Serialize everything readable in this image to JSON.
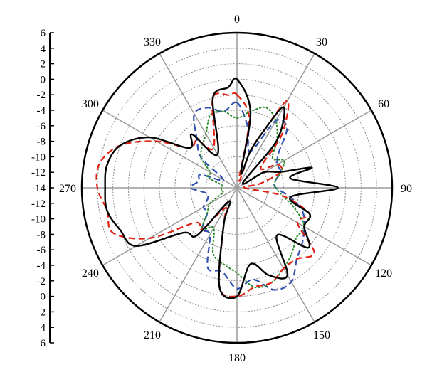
{
  "chart_data": {
    "type": "polar-line",
    "title": "",
    "angle_ticks": [
      "0",
      "30",
      "60",
      "90",
      "120",
      "150",
      "180",
      "210",
      "240",
      "270",
      "300",
      "330"
    ],
    "radial_scale_labels": [
      "6",
      "4",
      "2",
      "0",
      "-2",
      "-4",
      "-6",
      "-8",
      "-10",
      "-12",
      "-14",
      "-12",
      "-10",
      "-8",
      "-6",
      "-4",
      "-2",
      "0",
      "2",
      "4",
      "6"
    ],
    "r_range": [
      -14,
      6
    ],
    "radial_grid_step": 2,
    "angular_grid_step_deg": 30,
    "angle_direction": "clockwise",
    "zero_angle": "top",
    "series": [
      {
        "style": "solid",
        "color": "#000000",
        "points": [
          [
            0,
            0
          ],
          [
            10,
            -4
          ],
          [
            15,
            -12
          ],
          [
            20,
            -9
          ],
          [
            25,
            -6
          ],
          [
            30,
            -2
          ],
          [
            40,
            -6
          ],
          [
            50,
            -13
          ],
          [
            60,
            -10
          ],
          [
            70,
            -8
          ],
          [
            75,
            -4
          ],
          [
            80,
            -7
          ],
          [
            90,
            -1
          ],
          [
            100,
            -7
          ],
          [
            110,
            -4
          ],
          [
            120,
            -4
          ],
          [
            130,
            -2
          ],
          [
            140,
            -6
          ],
          [
            150,
            -1
          ],
          [
            160,
            -2
          ],
          [
            170,
            -4
          ],
          [
            180,
            0
          ],
          [
            190,
            -1
          ],
          [
            200,
            -9
          ],
          [
            210,
            -12
          ],
          [
            220,
            -6
          ],
          [
            230,
            -5
          ],
          [
            240,
            1
          ],
          [
            250,
            2
          ],
          [
            260,
            3
          ],
          [
            270,
            3
          ],
          [
            280,
            3
          ],
          [
            290,
            2
          ],
          [
            300,
            -1
          ],
          [
            310,
            -6
          ],
          [
            320,
            -5
          ],
          [
            330,
            -9
          ],
          [
            345,
            -2
          ],
          [
            355,
            -1
          ]
        ]
      },
      {
        "style": "dashed",
        "color": "#e02010",
        "points": [
          [
            0,
            -2
          ],
          [
            10,
            -5
          ],
          [
            15,
            -13
          ],
          [
            20,
            -9
          ],
          [
            25,
            -6
          ],
          [
            30,
            -1
          ],
          [
            40,
            -5
          ],
          [
            50,
            -10
          ],
          [
            60,
            -8
          ],
          [
            70,
            -8
          ],
          [
            80,
            -11
          ],
          [
            90,
            -13
          ],
          [
            100,
            -8
          ],
          [
            110,
            -4
          ],
          [
            120,
            -5
          ],
          [
            130,
            -1
          ],
          [
            140,
            -2
          ],
          [
            150,
            -2
          ],
          [
            160,
            -1
          ],
          [
            170,
            -1
          ],
          [
            180,
            0
          ],
          [
            190,
            -1
          ],
          [
            200,
            -9
          ],
          [
            210,
            -11
          ],
          [
            220,
            -7
          ],
          [
            230,
            -7
          ],
          [
            240,
            -1
          ],
          [
            250,
            3
          ],
          [
            260,
            3
          ],
          [
            270,
            4
          ],
          [
            280,
            4
          ],
          [
            290,
            2
          ],
          [
            300,
            -2
          ],
          [
            310,
            -6
          ],
          [
            320,
            -6
          ],
          [
            330,
            -8
          ],
          [
            345,
            -2
          ],
          [
            355,
            -2
          ]
        ]
      },
      {
        "style": "dashed",
        "color": "#3050b0",
        "points": [
          [
            0,
            -3
          ],
          [
            10,
            -6
          ],
          [
            20,
            -9
          ],
          [
            30,
            -4
          ],
          [
            40,
            -4
          ],
          [
            50,
            -7
          ],
          [
            60,
            -8
          ],
          [
            70,
            -8
          ],
          [
            80,
            -9
          ],
          [
            90,
            -9
          ],
          [
            100,
            -7
          ],
          [
            110,
            -5
          ],
          [
            120,
            -4
          ],
          [
            130,
            -3
          ],
          [
            140,
            -2
          ],
          [
            150,
            0
          ],
          [
            160,
            0
          ],
          [
            170,
            -2
          ],
          [
            180,
            -1
          ],
          [
            190,
            -3
          ],
          [
            200,
            -3
          ],
          [
            210,
            -7
          ],
          [
            220,
            -7
          ],
          [
            230,
            -9
          ],
          [
            240,
            -9
          ],
          [
            250,
            -10
          ],
          [
            260,
            -10
          ],
          [
            270,
            -8
          ],
          [
            280,
            -9
          ],
          [
            290,
            -9
          ],
          [
            300,
            -12
          ],
          [
            310,
            -8
          ],
          [
            320,
            -6
          ],
          [
            330,
            -3
          ],
          [
            340,
            -3
          ],
          [
            350,
            -4
          ]
        ]
      },
      {
        "style": "dotted",
        "color": "#2a8a2a",
        "points": [
          [
            0,
            -5
          ],
          [
            10,
            -4
          ],
          [
            20,
            -3
          ],
          [
            30,
            -4
          ],
          [
            40,
            -6
          ],
          [
            50,
            -8
          ],
          [
            60,
            -7
          ],
          [
            70,
            -8
          ],
          [
            80,
            -9
          ],
          [
            90,
            -9
          ],
          [
            100,
            -8
          ],
          [
            110,
            -6
          ],
          [
            120,
            -4
          ],
          [
            130,
            -4
          ],
          [
            140,
            -3
          ],
          [
            150,
            -2
          ],
          [
            160,
            -1
          ],
          [
            170,
            -1
          ],
          [
            180,
            -3
          ],
          [
            190,
            -4
          ],
          [
            200,
            -5
          ],
          [
            210,
            -8
          ],
          [
            220,
            -7
          ],
          [
            230,
            -9
          ],
          [
            240,
            -10
          ],
          [
            250,
            -12
          ],
          [
            260,
            -12
          ],
          [
            270,
            -12
          ],
          [
            280,
            -12
          ],
          [
            290,
            -10
          ],
          [
            300,
            -10
          ],
          [
            310,
            -8
          ],
          [
            320,
            -7
          ],
          [
            330,
            -6
          ],
          [
            340,
            -4
          ],
          [
            350,
            -4
          ]
        ]
      }
    ]
  }
}
